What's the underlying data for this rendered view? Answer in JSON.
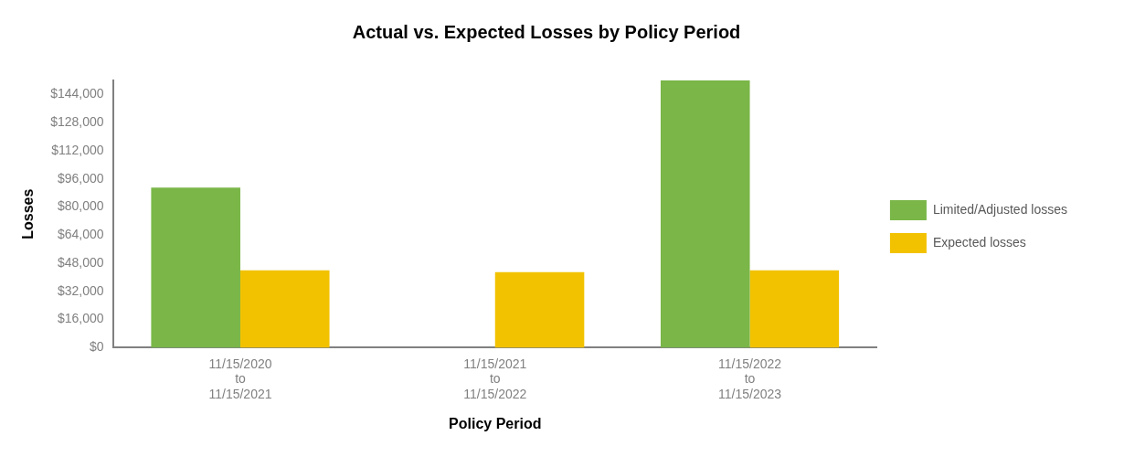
{
  "chart_data": {
    "type": "bar",
    "title": "Actual vs. Expected Losses by Policy Period",
    "xlabel": "Policy Period",
    "ylabel": "Losses",
    "categories": [
      "11/15/2020\nto\n11/15/2021",
      "11/15/2021\nto\n11/15/2022",
      "11/15/2022\nto\n11/15/2023"
    ],
    "series": [
      {
        "name": "Limited/Adjusted losses",
        "color": "#7ab648",
        "values": [
          91000,
          0,
          152000
        ]
      },
      {
        "name": "Expected losses",
        "color": "#f2c200",
        "values": [
          44000,
          43000,
          44000
        ]
      }
    ],
    "ylim": [
      0,
      152000
    ],
    "yticks": [
      {
        "value": 0,
        "label": "$0"
      },
      {
        "value": 16000,
        "label": "$16,000"
      },
      {
        "value": 32000,
        "label": "$32,000"
      },
      {
        "value": 48000,
        "label": "$48,000"
      },
      {
        "value": 64000,
        "label": "$64,000"
      },
      {
        "value": 80000,
        "label": "$80,000"
      },
      {
        "value": 96000,
        "label": "$96,000"
      },
      {
        "value": 112000,
        "label": "$112,000"
      },
      {
        "value": 128000,
        "label": "$128,000"
      },
      {
        "value": 144000,
        "label": "$144,000"
      }
    ],
    "grid": false,
    "legend": "right"
  }
}
